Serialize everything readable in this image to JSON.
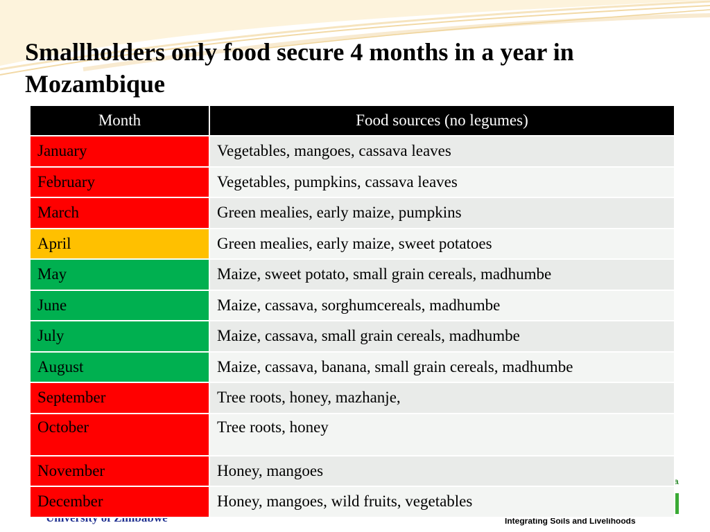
{
  "slide": {
    "title": "Smallholders only food secure 4 months in a year in Mozambique",
    "footer_left": "University of Zimbabwe",
    "footer_right": "Integrating Soils and Livelihoods",
    "logo_fragment": "a"
  },
  "colors": {
    "food_insecure": "#ff0000",
    "transition": "#ffc000",
    "food_secure": "#00b050",
    "header_bg": "#000000"
  },
  "table": {
    "headers": [
      "Month",
      "Food sources (no legumes)"
    ],
    "rows": [
      {
        "month": "January",
        "sources": "Vegetables, mangoes, cassava leaves",
        "status": "red"
      },
      {
        "month": "February",
        "sources": "Vegetables, pumpkins, cassava leaves",
        "status": "red"
      },
      {
        "month": "March",
        "sources": "Green mealies, early maize, pumpkins",
        "status": "red"
      },
      {
        "month": "April",
        "sources": "Green mealies, early maize, sweet potatoes",
        "status": "amber"
      },
      {
        "month": "May",
        "sources": "Maize, sweet potato, small grain cereals, madhumbe",
        "status": "green"
      },
      {
        "month": "June",
        "sources": "Maize, cassava, sorghumcereals, madhumbe",
        "status": "green"
      },
      {
        "month": "July",
        "sources": "Maize, cassava, small grain cereals, madhumbe",
        "status": "green"
      },
      {
        "month": "August",
        "sources": "Maize, cassava, banana, small grain cereals, madhumbe",
        "status": "green"
      },
      {
        "month": "September",
        "sources": "Tree roots, honey, mazhanje,",
        "status": "red"
      },
      {
        "month": "October",
        "sources": "Tree roots, honey",
        "status": "red"
      },
      {
        "month": "November",
        "sources": "Honey, mangoes",
        "status": "red"
      },
      {
        "month": "December",
        "sources": "Honey, mangoes, wild fruits, vegetables",
        "status": "red"
      }
    ]
  }
}
